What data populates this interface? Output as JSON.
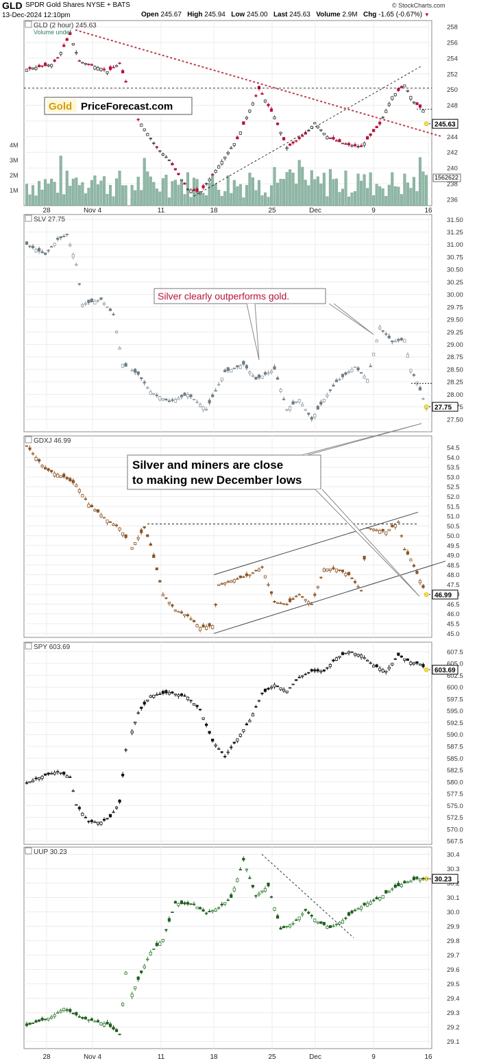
{
  "header": {
    "symbol": "GLD",
    "name": "SPDR Gold Shares NYSE + BATS",
    "date": "13-Dec-2024 12:10pm",
    "open_label": "Open",
    "open": "245.67",
    "high_label": "High",
    "high": "245.94",
    "low_label": "Low",
    "low": "245.00",
    "last_label": "Last",
    "last": "245.63",
    "volume_label": "Volume",
    "volume": "2.9M",
    "chg_label": "Chg",
    "chg": "-1.65 (-0.67%)",
    "credit": "© StockCharts.com"
  },
  "x_axis": {
    "labels": [
      "28",
      "Nov 4",
      "11",
      "18",
      "25",
      "Dec",
      "9",
      "16"
    ]
  },
  "chart_data": [
    {
      "type": "candlestick",
      "label": "GLD (2 hour) 245.63",
      "sublabel": "Volume undef",
      "last_value": "245.63",
      "volume_last": "1562622",
      "y_ticks": [
        236,
        238,
        240,
        242,
        244,
        246,
        248,
        250,
        252,
        254,
        256,
        258
      ],
      "ylim": [
        235.2,
        258.8
      ],
      "volume_ticks": [
        "1M",
        "2M",
        "3M",
        "4M"
      ],
      "color_up": "#333333",
      "color_down": "#b5123a",
      "anchors": [
        [
          0,
          252.6
        ],
        [
          8,
          253.2
        ],
        [
          10,
          254.0
        ],
        [
          14,
          257.0
        ],
        [
          17,
          253.6
        ],
        [
          24,
          252.7
        ],
        [
          26,
          252.3
        ],
        [
          30,
          253.3
        ],
        [
          36,
          246.2
        ],
        [
          42,
          242.6
        ],
        [
          46,
          241.0
        ],
        [
          52,
          237.3
        ],
        [
          56,
          236.9
        ],
        [
          64,
          241.4
        ],
        [
          68,
          243.7
        ],
        [
          72,
          247.4
        ],
        [
          75,
          250.1
        ],
        [
          80,
          246.5
        ],
        [
          84,
          242.6
        ],
        [
          90,
          244.3
        ],
        [
          93,
          245.8
        ],
        [
          97,
          244.0
        ],
        [
          103,
          243.0
        ],
        [
          108,
          242.7
        ],
        [
          114,
          245.6
        ],
        [
          118,
          249.1
        ],
        [
          122,
          250.6
        ],
        [
          125,
          248.4
        ],
        [
          128,
          247.4
        ],
        [
          129,
          245.6
        ]
      ],
      "annotation": {
        "brand_a": "Gold",
        "brand_b": "PriceForecast.com"
      }
    },
    {
      "type": "candlestick",
      "label": "SLV 27.75",
      "last_value": "27.75",
      "y_ticks": [
        27.5,
        27.75,
        28.0,
        28.25,
        28.5,
        28.75,
        29.0,
        29.25,
        29.5,
        29.75,
        30.0,
        30.25,
        30.5,
        30.75,
        31.0,
        31.25,
        31.5
      ],
      "y_tick_labels": [
        "27.50",
        "27.75",
        "28.00",
        "28.25",
        "28.50",
        "28.75",
        "29.00",
        "29.25",
        "29.50",
        "29.75",
        "30.00",
        "30.25",
        "30.50",
        "30.75",
        "31.00",
        "31.25",
        "31.50"
      ],
      "ylim": [
        27.25,
        31.6
      ],
      "color_up": "#8b9aa3",
      "color_down": "#6f7d86",
      "anchors": [
        [
          0,
          31.0
        ],
        [
          6,
          30.8
        ],
        [
          10,
          31.1
        ],
        [
          13,
          31.2
        ],
        [
          16,
          30.6
        ],
        [
          18,
          29.8
        ],
        [
          24,
          29.9
        ],
        [
          28,
          29.6
        ],
        [
          31,
          28.6
        ],
        [
          36,
          28.4
        ],
        [
          40,
          28.05
        ],
        [
          46,
          27.85
        ],
        [
          52,
          28.0
        ],
        [
          58,
          27.7
        ],
        [
          64,
          28.45
        ],
        [
          70,
          28.6
        ],
        [
          74,
          28.3
        ],
        [
          80,
          28.5
        ],
        [
          84,
          27.7
        ],
        [
          88,
          27.9
        ],
        [
          92,
          27.5
        ],
        [
          96,
          27.9
        ],
        [
          100,
          28.25
        ],
        [
          106,
          28.55
        ],
        [
          110,
          28.3
        ],
        [
          114,
          29.35
        ],
        [
          118,
          29.05
        ],
        [
          122,
          29.1
        ],
        [
          124,
          28.5
        ],
        [
          126,
          28.25
        ],
        [
          129,
          27.75
        ]
      ],
      "annotation": "Silver clearly outperforms gold."
    },
    {
      "type": "candlestick",
      "label": "GDXJ 46.99",
      "last_value": "46.99",
      "y_ticks": [
        45.0,
        45.5,
        46.0,
        46.5,
        47.0,
        47.5,
        48.0,
        48.5,
        49.0,
        49.5,
        50.0,
        50.5,
        51.0,
        51.5,
        52.0,
        52.5,
        53.0,
        53.5,
        54.0,
        54.5
      ],
      "y_tick_labels": [
        "45.0",
        "45.5",
        "46.0",
        "46.5",
        "47.0",
        "47.5",
        "48.0",
        "48.5",
        "49.0",
        "49.5",
        "50.0",
        "50.5",
        "51.0",
        "51.5",
        "52.0",
        "52.5",
        "53.0",
        "53.5",
        "54.0",
        "54.5"
      ],
      "ylim": [
        44.8,
        55.1
      ],
      "color_up": "#8c5423",
      "color_down": "#8c5423",
      "anchors": [
        [
          0,
          54.6
        ],
        [
          6,
          53.4
        ],
        [
          12,
          53.0
        ],
        [
          16,
          52.6
        ],
        [
          20,
          51.6
        ],
        [
          26,
          50.8
        ],
        [
          30,
          50.4
        ],
        [
          34,
          49.4
        ],
        [
          38,
          50.4
        ],
        [
          40,
          49.5
        ],
        [
          44,
          47.0
        ],
        [
          48,
          46.2
        ],
        [
          52,
          45.9
        ],
        [
          56,
          45.3
        ],
        [
          60,
          45.4
        ],
        [
          62,
          47.5
        ],
        [
          68,
          47.8
        ],
        [
          72,
          48.0
        ],
        [
          76,
          48.4
        ],
        [
          80,
          46.6
        ],
        [
          84,
          46.5
        ],
        [
          88,
          47.0
        ],
        [
          92,
          46.5
        ],
        [
          96,
          48.3
        ],
        [
          100,
          48.3
        ],
        [
          104,
          48.0
        ],
        [
          108,
          47.2
        ],
        [
          110,
          50.4
        ],
        [
          116,
          50.2
        ],
        [
          120,
          50.7
        ],
        [
          122,
          49.3
        ],
        [
          124,
          48.8
        ],
        [
          127,
          47.7
        ],
        [
          129,
          46.99
        ]
      ],
      "annotation": "Silver and miners are close to making new December lows"
    },
    {
      "type": "candlestick",
      "label": "SPY 603.69",
      "last_value": "603.69",
      "y_ticks": [
        567.5,
        570.0,
        572.5,
        575.0,
        577.5,
        580.0,
        582.5,
        585.0,
        587.5,
        590.0,
        592.5,
        595.0,
        597.5,
        600.0,
        602.5,
        605.0,
        607.5
      ],
      "y_tick_labels": [
        "567.5",
        "570.0",
        "572.5",
        "575.0",
        "577.5",
        "580.0",
        "582.5",
        "585.0",
        "587.5",
        "590.0",
        "592.5",
        "595.0",
        "597.5",
        "600.0",
        "602.5",
        "605.0",
        "607.5"
      ],
      "ylim": [
        566.8,
        609.5
      ],
      "color_up": "#111111",
      "color_down": "#111111",
      "anchors": [
        [
          0,
          579.8
        ],
        [
          5,
          581.2
        ],
        [
          10,
          582.2
        ],
        [
          14,
          581.0
        ],
        [
          16,
          575.2
        ],
        [
          20,
          571.6
        ],
        [
          24,
          571.5
        ],
        [
          27,
          572.6
        ],
        [
          30,
          575.7
        ],
        [
          32,
          586.8
        ],
        [
          36,
          594.6
        ],
        [
          40,
          598.2
        ],
        [
          46,
          598.9
        ],
        [
          52,
          597.9
        ],
        [
          56,
          595.2
        ],
        [
          60,
          588.6
        ],
        [
          64,
          585.4
        ],
        [
          68,
          589.1
        ],
        [
          72,
          593.0
        ],
        [
          76,
          598.6
        ],
        [
          80,
          600.5
        ],
        [
          84,
          599.2
        ],
        [
          88,
          602.1
        ],
        [
          92,
          603.4
        ],
        [
          96,
          603.4
        ],
        [
          100,
          606.2
        ],
        [
          104,
          607.5
        ],
        [
          108,
          606.8
        ],
        [
          112,
          604.6
        ],
        [
          116,
          603.4
        ],
        [
          120,
          606.7
        ],
        [
          124,
          605.3
        ],
        [
          127,
          604.9
        ],
        [
          129,
          603.69
        ]
      ]
    },
    {
      "type": "candlestick",
      "label": "UUP 30.23",
      "last_value": "30.23",
      "y_ticks": [
        29.1,
        29.2,
        29.3,
        29.4,
        29.5,
        29.6,
        29.7,
        29.8,
        29.9,
        30.0,
        30.1,
        30.2,
        30.3,
        30.4
      ],
      "y_tick_labels": [
        "29.1",
        "29.2",
        "29.3",
        "29.4",
        "29.5",
        "29.6",
        "29.7",
        "29.8",
        "29.9",
        "30.0",
        "30.1",
        "30.2",
        "30.3",
        "30.4"
      ],
      "ylim": [
        29.05,
        30.45
      ],
      "color_up": "#2e7d2e",
      "color_down": "#1f5f1f",
      "anchors": [
        [
          0,
          29.21
        ],
        [
          8,
          29.27
        ],
        [
          12,
          29.33
        ],
        [
          18,
          29.26
        ],
        [
          22,
          29.24
        ],
        [
          26,
          29.22
        ],
        [
          30,
          29.15
        ],
        [
          32,
          29.58
        ],
        [
          34,
          29.43
        ],
        [
          36,
          29.53
        ],
        [
          40,
          29.72
        ],
        [
          44,
          29.81
        ],
        [
          48,
          30.06
        ],
        [
          54,
          30.05
        ],
        [
          58,
          29.99
        ],
        [
          62,
          30.03
        ],
        [
          66,
          30.1
        ],
        [
          70,
          30.36
        ],
        [
          74,
          30.11
        ],
        [
          78,
          30.18
        ],
        [
          82,
          29.88
        ],
        [
          86,
          29.92
        ],
        [
          90,
          30.01
        ],
        [
          94,
          29.93
        ],
        [
          98,
          29.89
        ],
        [
          102,
          29.94
        ],
        [
          106,
          30.01
        ],
        [
          110,
          30.06
        ],
        [
          114,
          30.1
        ],
        [
          118,
          30.16
        ],
        [
          122,
          30.2
        ],
        [
          126,
          30.23
        ],
        [
          129,
          30.23
        ]
      ]
    }
  ]
}
